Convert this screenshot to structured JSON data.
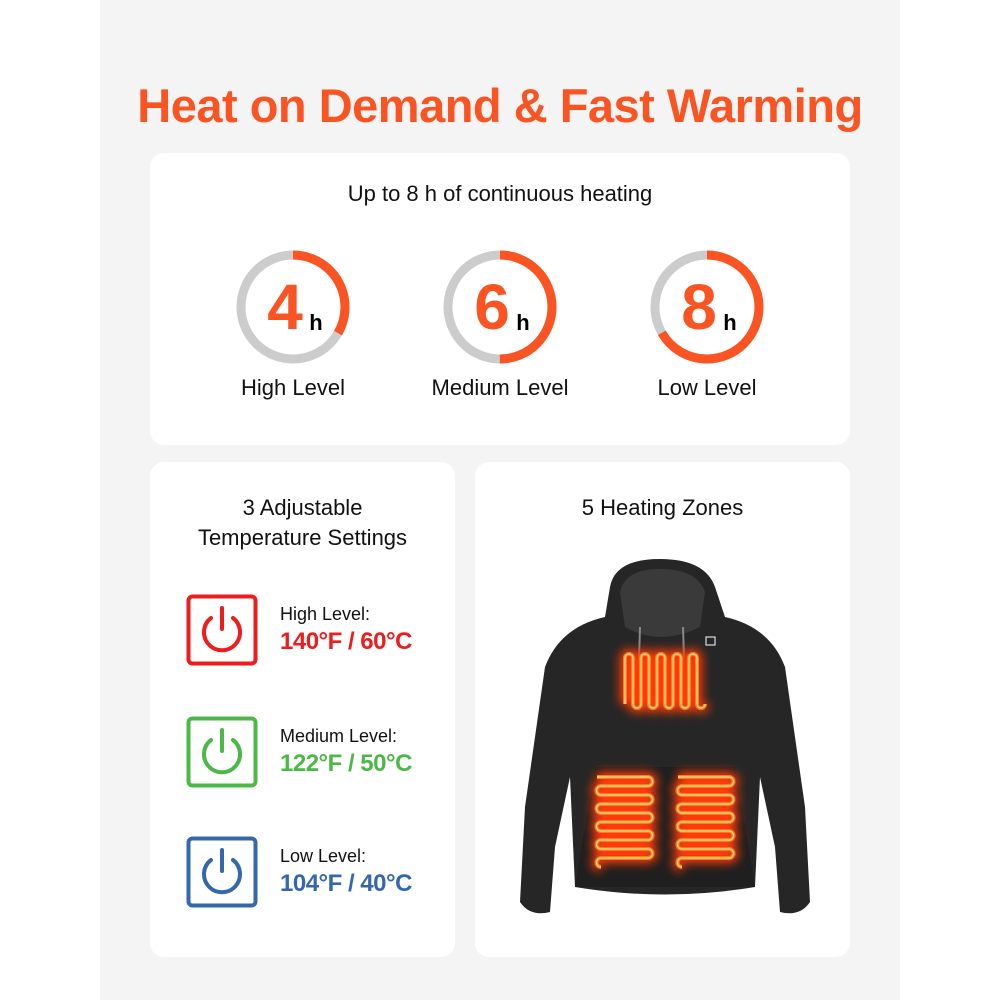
{
  "title": "Heat on Demand & Fast Warming",
  "colors": {
    "accent": "#fb5423",
    "ring_track": "#cccccc",
    "high": "#ee1c1c",
    "medium": "#4cb847",
    "low": "#3468ae",
    "hoodie": "#262626",
    "heat": "#ff7a1a"
  },
  "runtime": {
    "heading": "Up to 8 h of continuous heating",
    "max_hours": 8,
    "unit": "h",
    "items": [
      {
        "value": "4",
        "hours": 4,
        "label": "High Level"
      },
      {
        "value": "6",
        "hours": 6,
        "label": "Medium Level"
      },
      {
        "value": "8",
        "hours": 8,
        "label": "Low Level"
      }
    ]
  },
  "settings": {
    "heading_line1": "3 Adjustable",
    "heading_line2": "Temperature Settings",
    "icon": "power-icon",
    "items": [
      {
        "label": "High Level:",
        "value": "140°F / 60°C",
        "color": "#ee1c1c"
      },
      {
        "label": "Medium Level:",
        "value": "122°F / 50°C",
        "color": "#4cb847"
      },
      {
        "label": "Low Level:",
        "value": "104°F / 40°C",
        "color": "#3468ae"
      }
    ]
  },
  "zones": {
    "heading": "5 Heating Zones",
    "count": 5
  }
}
